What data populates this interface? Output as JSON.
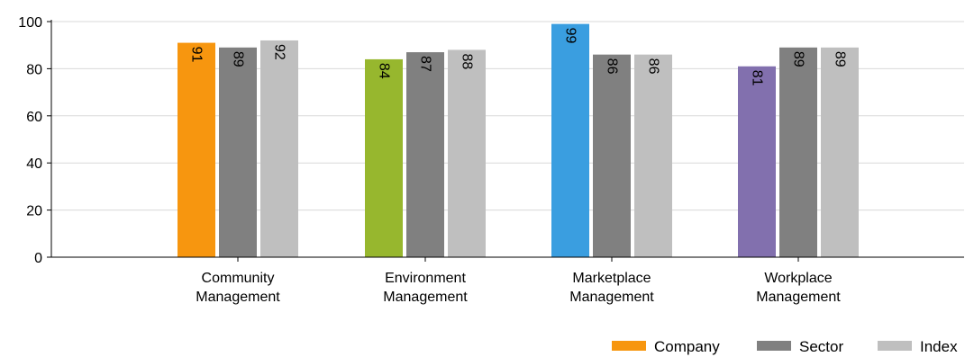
{
  "chart_data": {
    "type": "bar",
    "title": "",
    "xlabel": "",
    "ylabel": "",
    "ylim": [
      0,
      100
    ],
    "yticks": [
      0,
      20,
      40,
      60,
      80,
      100
    ],
    "grid": "horizontal",
    "legend_position": "bottom-right",
    "categories": [
      [
        "Community",
        "Management"
      ],
      [
        "Environment",
        "Management"
      ],
      [
        "Marketplace",
        "Management"
      ],
      [
        "Workplace",
        "Management"
      ]
    ],
    "series": [
      {
        "name": "Company",
        "values": [
          91,
          84,
          99,
          81
        ],
        "colors": [
          "#f7960f",
          "#97b72e",
          "#3a9ee0",
          "#8270ae"
        ]
      },
      {
        "name": "Sector",
        "values": [
          89,
          87,
          86,
          89
        ],
        "color": "#808080"
      },
      {
        "name": "Index",
        "values": [
          92,
          88,
          86,
          89
        ],
        "color": "#bfbfbf"
      }
    ],
    "legend": [
      {
        "label": "Company",
        "color": "#f7960f"
      },
      {
        "label": "Sector",
        "color": "#808080"
      },
      {
        "label": "Index",
        "color": "#bfbfbf"
      }
    ]
  }
}
